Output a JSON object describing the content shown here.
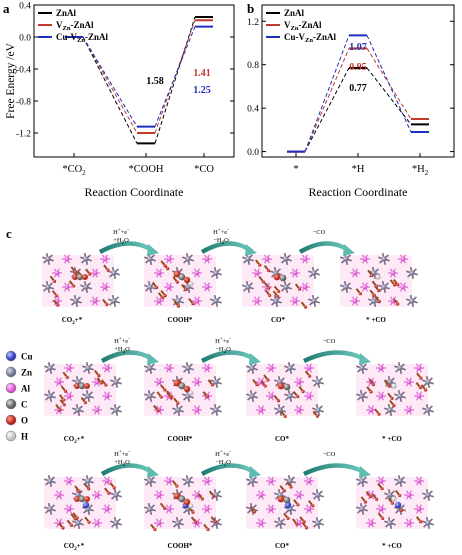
{
  "chart_data": [
    {
      "type": "line",
      "panel": "a",
      "ylabel": "Free Energy /eV",
      "xlabel": "Reaction Coordinate",
      "categories": [
        "*CO2",
        "*COOH",
        "*CO"
      ],
      "category_labels": [
        {
          "main": "*CO",
          "sub": "2"
        },
        {
          "main": "*COOH",
          "sub": ""
        },
        {
          "main": "*CO",
          "sub": ""
        }
      ],
      "ylim": [
        -1.5,
        0.4
      ],
      "yticks": [
        "0.4",
        "0.0",
        "-0.4",
        "-0.8",
        "-1.2"
      ],
      "legend_position": "top-left",
      "series": [
        {
          "name": "ZnAl",
          "name_main": "ZnAl",
          "name_sub": "",
          "name_tail": "",
          "color": "#000000",
          "values": [
            0.0,
            -1.33,
            0.25
          ]
        },
        {
          "name": "VZn-ZnAl",
          "name_main": "V",
          "name_sub": "Zn",
          "name_tail": "-ZnAl",
          "color": "#c0392b",
          "values": [
            0.0,
            -1.2,
            0.21
          ]
        },
        {
          "name": "Cu-VZn-ZnAl",
          "name_main": "Cu-V",
          "name_sub": "Zn",
          "name_tail": "-ZnAl",
          "color": "#1f2fbf",
          "values": [
            0.0,
            -1.12,
            0.13
          ]
        }
      ],
      "annotations": [
        {
          "text": "1.58",
          "color": "#000000"
        },
        {
          "text": "1.41",
          "color": "#c0392b"
        },
        {
          "text": "1.25",
          "color": "#1f2fbf"
        }
      ]
    },
    {
      "type": "line",
      "panel": "b",
      "xlabel": "Reaction Coordinate",
      "categories": [
        "*",
        "*H",
        "*H2"
      ],
      "category_labels": [
        {
          "main": "*",
          "sub": ""
        },
        {
          "main": "*H",
          "sub": ""
        },
        {
          "main": "*H",
          "sub": "2"
        }
      ],
      "ylim": [
        -0.05,
        1.35
      ],
      "yticks": [
        "1.2",
        "0.8",
        "0.4",
        "0.0"
      ],
      "legend_position": "top-left",
      "series": [
        {
          "name": "ZnAl",
          "name_main": "ZnAl",
          "name_sub": "",
          "name_tail": "",
          "color": "#000000",
          "values": [
            0.0,
            0.77,
            0.25
          ]
        },
        {
          "name": "VZn-ZnAl",
          "name_main": "V",
          "name_sub": "Zn",
          "name_tail": "-ZnAl",
          "color": "#c0392b",
          "values": [
            0.0,
            0.95,
            0.3
          ]
        },
        {
          "name": "Cu-VZn-ZnAl",
          "name_main": "Cu-V",
          "name_sub": "Zn",
          "name_tail": "-ZnAl",
          "color": "#1f2fbf",
          "values": [
            0.0,
            1.07,
            0.18
          ]
        }
      ],
      "annotations": [
        {
          "text": "1.07",
          "color": "#1f2fbf"
        },
        {
          "text": "0.95",
          "color": "#c0392b"
        },
        {
          "text": "0.77",
          "color": "#000000"
        }
      ]
    }
  ],
  "panels": {
    "a": "a",
    "b": "b",
    "c": "c"
  },
  "pathway": {
    "steps": [
      {
        "main": "H",
        "sup1": "+",
        "mid": "+e",
        "sup2": "-",
        "line2_main": "+H",
        "line2_sub": "2",
        "line2_tail": "O"
      },
      {
        "main": "H",
        "sup1": "+",
        "mid": "+e",
        "sup2": "-",
        "line2_main": "−H",
        "line2_sub": "2",
        "line2_tail": "O"
      },
      {
        "main": "−CO",
        "sup1": "",
        "mid": "",
        "sup2": "",
        "line2_main": "",
        "line2_sub": "",
        "line2_tail": ""
      }
    ],
    "states": [
      {
        "main": "CO",
        "sub": "2",
        "tail": "+*"
      },
      {
        "main": "COOH*",
        "sub": "",
        "tail": ""
      },
      {
        "main": "CO*",
        "sub": "",
        "tail": ""
      },
      {
        "main": "* +CO",
        "sub": "",
        "tail": ""
      }
    ]
  },
  "legend_atoms": [
    {
      "label": "Cu",
      "color": "#4a5bd6"
    },
    {
      "label": "Zn",
      "color": "#8a8fa8"
    },
    {
      "label": "Al",
      "color": "#e56ee0"
    },
    {
      "label": "C",
      "color": "#8c8c8c"
    },
    {
      "label": "O",
      "color": "#d8392b"
    },
    {
      "label": "H",
      "color": "#f2f2f2"
    }
  ]
}
